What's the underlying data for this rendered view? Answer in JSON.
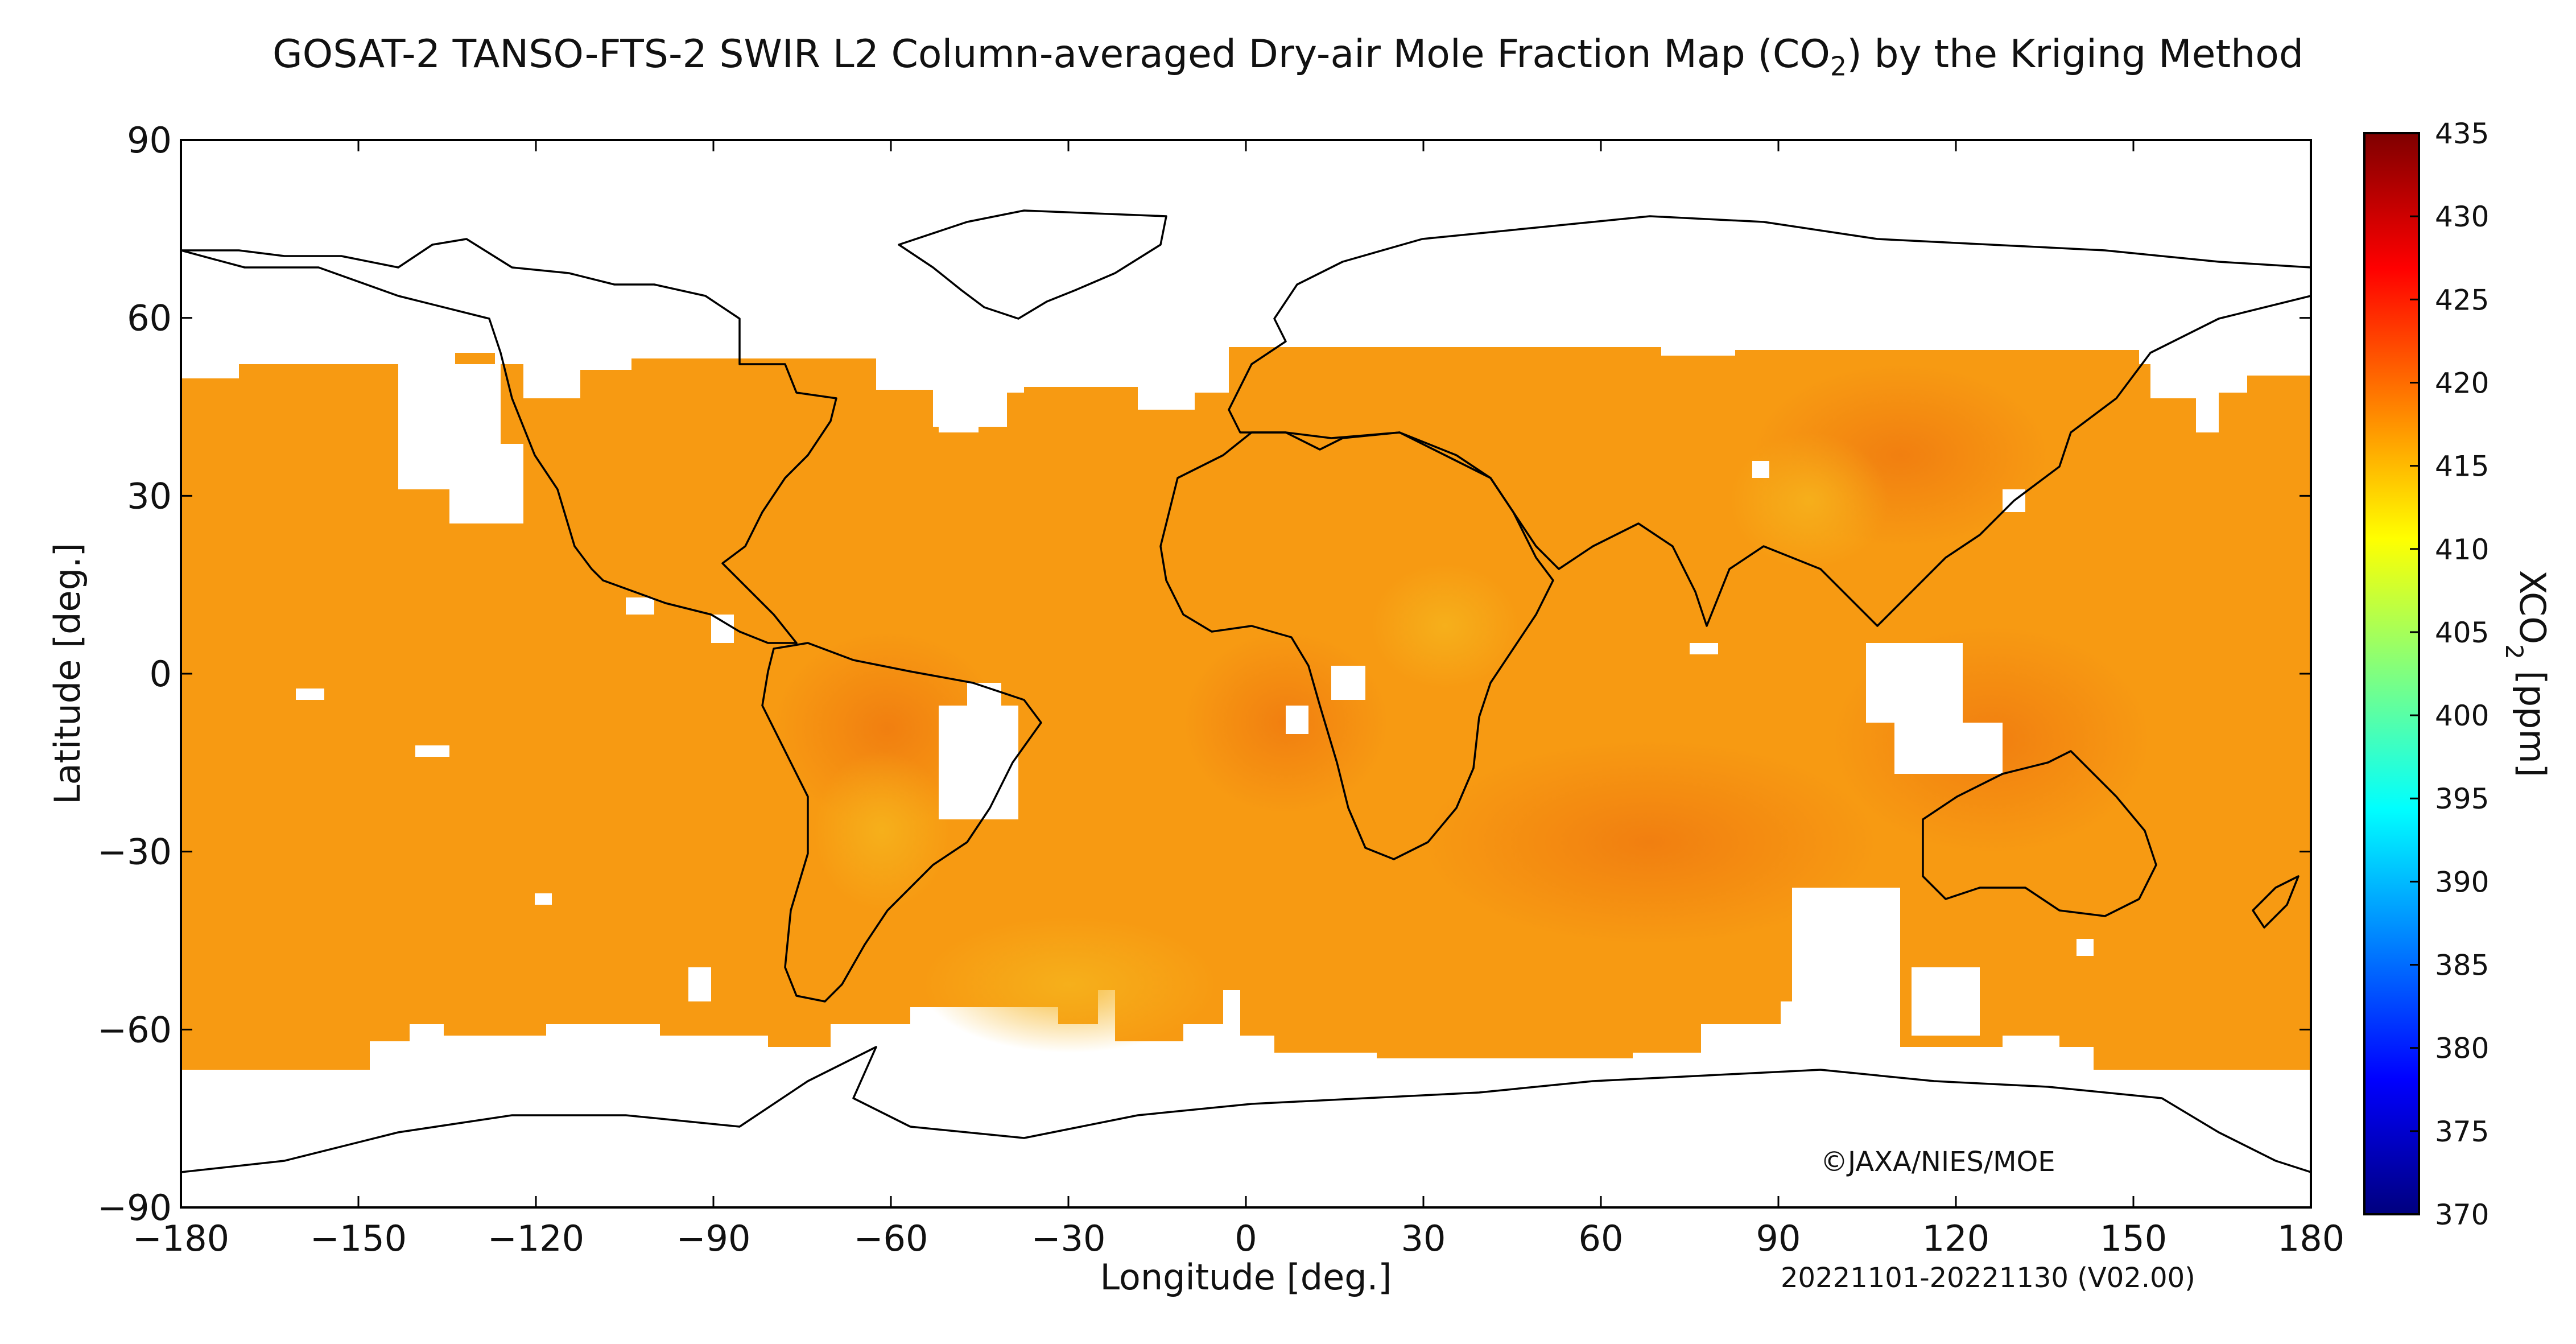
{
  "title_main": "GOSAT-2 TANSO-FTS-2 SWIR L2 Column-averaged Dry-air Mole Fraction Map (CO",
  "title_sub": "2",
  "title_end": ") by the Kriging Method",
  "copyright": "©JAXA/NIES/MOE",
  "period": "20221101-20221130 (V02.00)",
  "colors": {
    "ocean_no_data": "#ffffff",
    "coastline": "#000000",
    "field_base": "#f79a12"
  },
  "chart_data": {
    "type": "heatmap",
    "xlabel": "Longitude [deg.]",
    "ylabel": "Latitude [deg.]",
    "xlim": [
      -180,
      180
    ],
    "ylim": [
      -90,
      90
    ],
    "xticks": [
      "−180",
      "−150",
      "−120",
      "−90",
      "−60",
      "−30",
      "0",
      "30",
      "60",
      "90",
      "120",
      "150",
      "180"
    ],
    "yticks": [
      "90",
      "60",
      "30",
      "0",
      "−30",
      "−60",
      "−90"
    ],
    "colorbar": {
      "label": "XCO2 [ppm]",
      "label_main": "XCO",
      "label_sub": "2",
      "label_end": " [ppm]",
      "min": 370,
      "max": 435,
      "ticks": [
        "435",
        "430",
        "425",
        "420",
        "415",
        "410",
        "405",
        "400",
        "395",
        "390",
        "385",
        "380",
        "375",
        "370"
      ],
      "colormap": "jet"
    },
    "typical_xco2_ppm": 419
  }
}
